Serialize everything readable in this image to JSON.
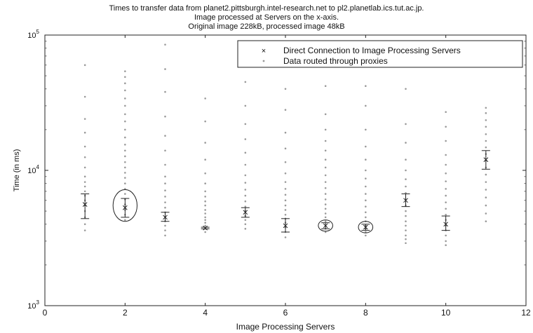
{
  "chart_data": {
    "type": "scatter",
    "title": [
      "Times to transfer data from planet2.pittsburgh.intel-research.net to pl2.planetlab.ics.tut.ac.jp.",
      "Image processed at Servers on the x-axis.",
      "Original image 228kB, processed image 48kB"
    ],
    "xlabel": "Image Processing Servers",
    "ylabel": "Time (in ms)",
    "xlim": [
      0,
      12
    ],
    "ylim": [
      1000,
      100000
    ],
    "yscale": "log",
    "x_ticks": [
      "0",
      "2",
      "4",
      "6",
      "8",
      "10",
      "12"
    ],
    "y_ticks": [
      {
        "base": "10",
        "exp": "3"
      },
      {
        "base": "10",
        "exp": "4"
      },
      {
        "base": "10",
        "exp": "5"
      }
    ],
    "legend": {
      "location": "top-right",
      "entries": [
        "Direct Connection to Image Processing Servers",
        "Data routed through proxies"
      ]
    },
    "series": [
      {
        "name": "Direct Connection to Image Processing Servers",
        "marker": "x-errorbar",
        "points": [
          {
            "x": 1,
            "y": 5600,
            "low": 4400,
            "high": 6700
          },
          {
            "x": 2,
            "y": 5300,
            "low": 4500,
            "high": 6200
          },
          {
            "x": 3,
            "y": 4500,
            "low": 4200,
            "high": 4900
          },
          {
            "x": 4,
            "y": 3750,
            "low": 3700,
            "high": 3800
          },
          {
            "x": 5,
            "y": 4900,
            "low": 4500,
            "high": 5300
          },
          {
            "x": 6,
            "y": 3900,
            "low": 3500,
            "high": 4400
          },
          {
            "x": 7,
            "y": 3900,
            "low": 3700,
            "high": 4100
          },
          {
            "x": 8,
            "y": 3800,
            "low": 3600,
            "high": 4000
          },
          {
            "x": 9,
            "y": 6000,
            "low": 5400,
            "high": 6700
          },
          {
            "x": 10,
            "y": 4000,
            "low": 3600,
            "high": 4600
          },
          {
            "x": 11,
            "y": 12000,
            "low": 10200,
            "high": 14000
          }
        ]
      },
      {
        "name": "Data routed through proxies",
        "marker": "dot",
        "groups": [
          {
            "x": 1,
            "values": [
              3600,
              4000,
              4500,
              5000,
              5500,
              6000,
              6500,
              7000,
              7600,
              8200,
              9000,
              10500,
              12500,
              15000,
              19000,
              24000,
              35000,
              60000
            ]
          },
          {
            "x": 2,
            "values": [
              4300,
              4700,
              5100,
              5600,
              6100,
              6700,
              7300,
              8000,
              8800,
              9600,
              10500,
              11500,
              12700,
              14000,
              15500,
              17500,
              20000,
              23000,
              26000,
              30000,
              34000,
              39000,
              44000,
              49000,
              54000
            ]
          },
          {
            "x": 3,
            "values": [
              3300,
              3600,
              3900,
              4200,
              4500,
              4900,
              5300,
              5800,
              6400,
              7100,
              8000,
              9000,
              11000,
              14000,
              18000,
              25000,
              38000,
              56000,
              85000
            ]
          },
          {
            "x": 4,
            "values": [
              3500,
              3700,
              3900,
              4100,
              4300,
              4500,
              4800,
              5100,
              5500,
              5900,
              6400,
              7000,
              8000,
              9500,
              12000,
              16000,
              23000,
              34000
            ]
          },
          {
            "x": 5,
            "values": [
              3700,
              4000,
              4300,
              4600,
              5000,
              5400,
              5900,
              6500,
              7200,
              8100,
              9200,
              11000,
              13500,
              17000,
              22000,
              30000,
              45000,
              60000
            ]
          },
          {
            "x": 6,
            "values": [
              3200,
              3500,
              3800,
              4100,
              4400,
              4700,
              5100,
              5500,
              6000,
              6600,
              7300,
              8200,
              9500,
              11500,
              14500,
              19000,
              28000,
              40000
            ]
          },
          {
            "x": 7,
            "values": [
              3500,
              3700,
              3900,
              4200,
              4500,
              4800,
              5200,
              5600,
              6100,
              6700,
              7400,
              8200,
              9200,
              10500,
              12000,
              14000,
              16500,
              20000,
              26000,
              42000
            ]
          },
          {
            "x": 8,
            "values": [
              3300,
              3500,
              3700,
              3900,
              4200,
              4500,
              4900,
              5400,
              6000,
              6700,
              7600,
              8700,
              10000,
              12000,
              15000,
              20000,
              30000,
              42000
            ]
          },
          {
            "x": 9,
            "values": [
              2900,
              3100,
              3300,
              3600,
              3900,
              4200,
              4600,
              5000,
              5500,
              6100,
              6800,
              7600,
              8600,
              10000,
              12000,
              16000,
              22000,
              40000
            ]
          },
          {
            "x": 10,
            "values": [
              2800,
              3000,
              3300,
              3600,
              3900,
              4300,
              4700,
              5200,
              5800,
              6500,
              7300,
              8300,
              9500,
              11000,
              13000,
              16500,
              21000,
              27000
            ]
          },
          {
            "x": 11,
            "values": [
              4200,
              4800,
              5500,
              6300,
              7200,
              8200,
              9300,
              10500,
              11800,
              13200,
              14800,
              16500,
              18500,
              21000,
              23500,
              26500,
              29000
            ]
          }
        ]
      }
    ],
    "highlight_ellipses": [
      {
        "x": 2,
        "y": 5300,
        "rx_units": 0.3,
        "y_low": 4200,
        "y_high": 7200
      },
      {
        "x": 7,
        "y": 3900,
        "rx_units": 0.18,
        "y_low": 3550,
        "y_high": 4300
      },
      {
        "x": 8,
        "y": 3800,
        "rx_units": 0.18,
        "y_low": 3450,
        "y_high": 4200
      }
    ]
  }
}
